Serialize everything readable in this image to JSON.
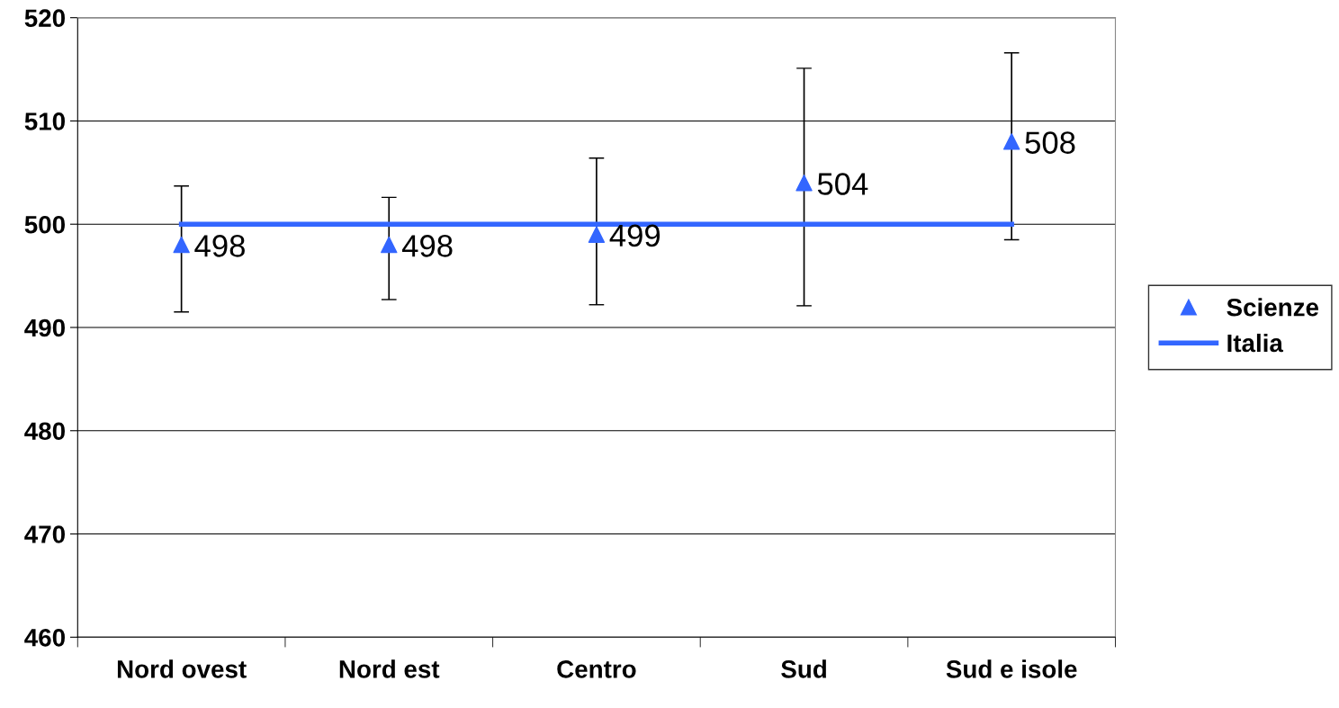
{
  "chart_data": {
    "type": "scatter",
    "categories": [
      "Nord ovest",
      "Nord est",
      "Centro",
      "Sud",
      "Sud e isole"
    ],
    "series": [
      {
        "name": "Scienze",
        "color": "#3366ff",
        "marker": "triangle",
        "values": [
          498,
          498,
          499,
          504,
          508
        ],
        "errors": [
          [
            491.5,
            503.7
          ],
          [
            492.7,
            502.6
          ],
          [
            492.2,
            506.4
          ],
          [
            492.1,
            515.1
          ],
          [
            498.5,
            516.6
          ]
        ],
        "data_labels": true
      },
      {
        "name": "Italia",
        "type": "line",
        "color": "#3366ff",
        "marker": "none",
        "line_style": "solid",
        "values": [
          500,
          500,
          500,
          500,
          500
        ]
      }
    ],
    "ylim": [
      460,
      520
    ],
    "yticks": [
      460,
      470,
      480,
      490,
      500,
      510,
      520
    ],
    "grid": "y",
    "legend": "right"
  }
}
